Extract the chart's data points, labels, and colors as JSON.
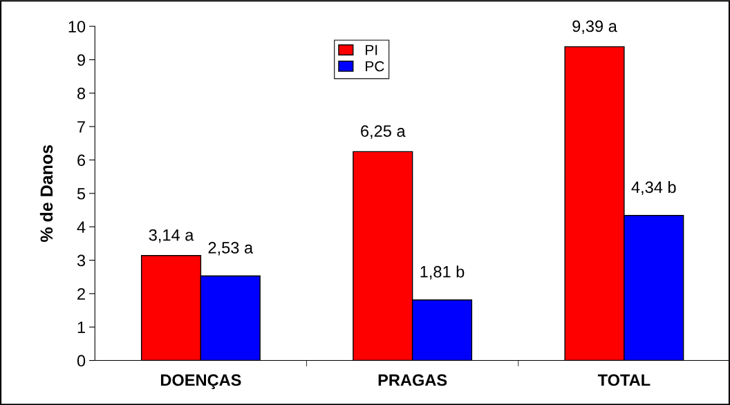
{
  "chart_data": {
    "type": "bar",
    "ylabel": "% de Danos",
    "categories": [
      "DOENÇAS",
      "PRAGAS",
      "TOTAL"
    ],
    "series": [
      {
        "name": "PI",
        "color": "#ff0000",
        "values": [
          3.14,
          6.25,
          9.39
        ],
        "value_labels": [
          "3,14 a",
          "6,25 a",
          "9,39 a"
        ]
      },
      {
        "name": "PC",
        "color": "#0000ff",
        "values": [
          2.53,
          1.81,
          4.34
        ],
        "value_labels": [
          "2,53 a",
          "1,81 b",
          "4,34 b"
        ]
      }
    ],
    "ylim": [
      0,
      10
    ],
    "yticks": [
      0,
      1,
      2,
      3,
      4,
      5,
      6,
      7,
      8,
      9,
      10
    ],
    "grid": false,
    "legend": "top"
  }
}
